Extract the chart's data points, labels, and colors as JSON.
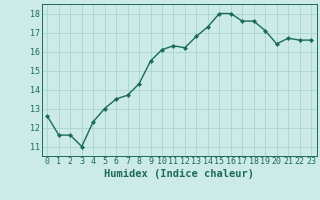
{
  "x": [
    0,
    1,
    2,
    3,
    4,
    5,
    6,
    7,
    8,
    9,
    10,
    11,
    12,
    13,
    14,
    15,
    16,
    17,
    18,
    19,
    20,
    21,
    22,
    23
  ],
  "y": [
    12.6,
    11.6,
    11.6,
    11.0,
    12.3,
    13.0,
    13.5,
    13.7,
    14.3,
    15.5,
    16.1,
    16.3,
    16.2,
    16.8,
    17.3,
    18.0,
    18.0,
    17.6,
    17.6,
    17.1,
    16.4,
    16.7,
    16.6,
    16.6
  ],
  "xlabel": "Humidex (Indice chaleur)",
  "ylim": [
    10.5,
    18.5
  ],
  "xlim": [
    -0.5,
    23.5
  ],
  "yticks": [
    11,
    12,
    13,
    14,
    15,
    16,
    17,
    18
  ],
  "xticks": [
    0,
    1,
    2,
    3,
    4,
    5,
    6,
    7,
    8,
    9,
    10,
    11,
    12,
    13,
    14,
    15,
    16,
    17,
    18,
    19,
    20,
    21,
    22,
    23
  ],
  "line_color": "#1a6b5a",
  "marker": "D",
  "marker_size": 2.0,
  "bg_color": "#cceae7",
  "grid_color": "#aad4d0",
  "line_width": 1.0,
  "xlabel_fontsize": 7.5,
  "tick_fontsize": 6.0,
  "font_family": "monospace"
}
